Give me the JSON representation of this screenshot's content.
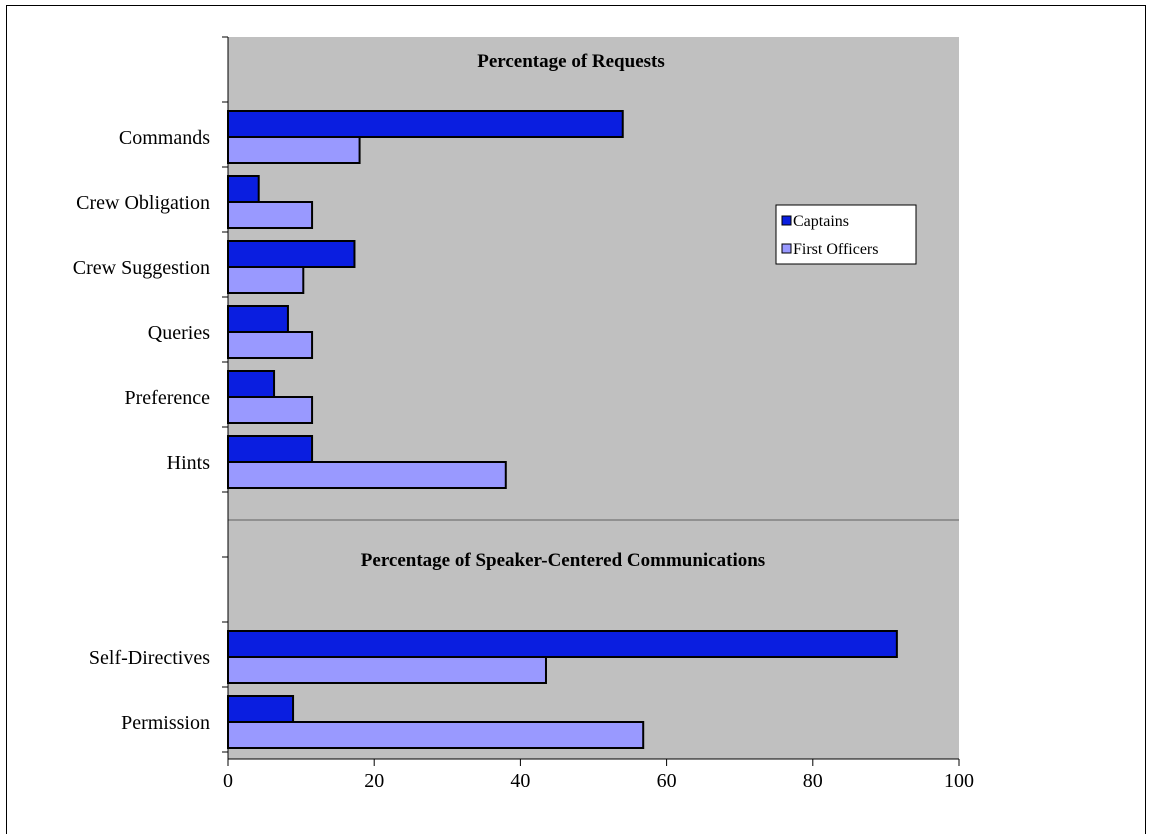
{
  "chart_data": {
    "type": "bar",
    "orientation": "horizontal",
    "sections": [
      {
        "title": "Percentage of Requests",
        "categories": [
          "Commands",
          "Crew Obligation",
          "Crew Suggestion",
          "Queries",
          "Preference",
          "Hints"
        ],
        "series": [
          {
            "name": "Captains",
            "values": [
              54,
              4.2,
              17.3,
              8.2,
              6.3,
              11.5
            ]
          },
          {
            "name": "First Officers",
            "values": [
              18,
              11.5,
              10.3,
              11.5,
              11.5,
              38
            ]
          }
        ]
      },
      {
        "title": "Percentage of Speaker-Centered Communications",
        "categories": [
          "Self-Directives",
          "Permission"
        ],
        "series": [
          {
            "name": "Captains",
            "values": [
              91.5,
              8.9
            ]
          },
          {
            "name": "First Officers",
            "values": [
              43.5,
              56.8
            ]
          }
        ]
      }
    ],
    "xlim": [
      0,
      100
    ],
    "xticks": [
      0,
      20,
      40,
      60,
      80,
      100
    ],
    "xtick_labels": [
      "0",
      "20",
      "40",
      "60",
      "80",
      "100"
    ],
    "legend": {
      "placement": "right",
      "entries": [
        {
          "name": "Captains",
          "color": "#0a1ee0"
        },
        {
          "name": "First Officers",
          "color": "#9999ff"
        }
      ]
    },
    "colors": {
      "plot_background": "#c0c0c0",
      "captains": "#0a1ee0",
      "first_officers": "#9999ff",
      "bar_border": "#000000"
    }
  }
}
